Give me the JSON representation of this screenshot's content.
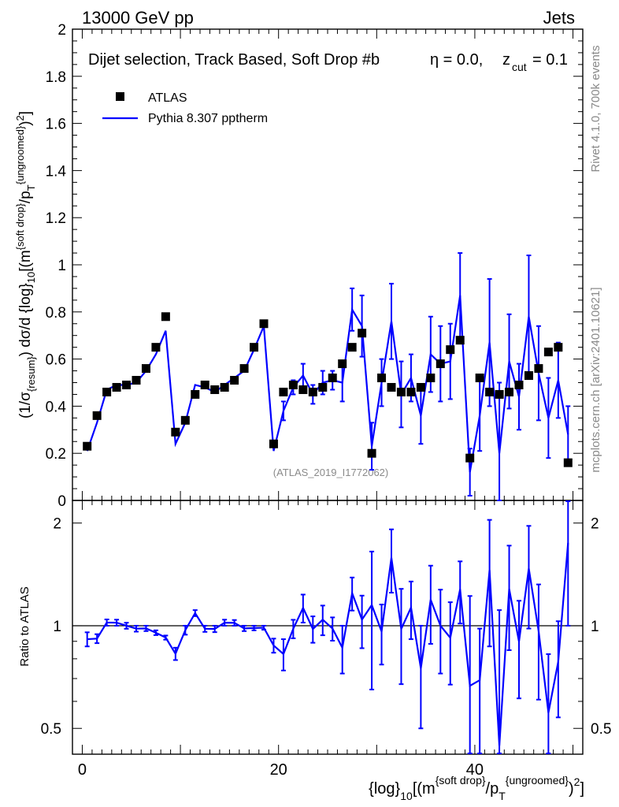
{
  "header": {
    "collision": "13000 GeV pp",
    "process": "Jets",
    "rivet_version": "Rivet 4.1.0,  700k events",
    "website": "mcplots.cern.ch [arXiv:2401.10621]",
    "analysis_id": "(ATLAS_2019_I1772062)"
  },
  "chart_data": {
    "type": "scatter",
    "title": "Dijet selection, Track Based, Soft Drop #b",
    "subtitle_eta": "η = 0.0,",
    "subtitle_z": "z",
    "subtitle_z_sub": "cut",
    "subtitle_z_val": "= 0.1",
    "ylabel_main": "(1/σ_{resum}) dσ/d {log}_{10}[(m^{soft drop}/p_T^{ungroomed})^2]",
    "ylabel_ratio": "Ratio to ATLAS",
    "xlabel": "{log}_{10}[(m^{soft drop}/p_T^{ungroomed})^2]",
    "xlim": [
      -1,
      51
    ],
    "ylim_main": [
      0,
      2
    ],
    "ylim_ratio": [
      0.42,
      2.33
    ],
    "x_ticks": [
      "0",
      "20",
      "40"
    ],
    "y_ticks_main": [
      "0",
      "0.2",
      "0.4",
      "0.6",
      "0.8",
      "1",
      "1.2",
      "1.4",
      "1.6",
      "1.8",
      "2"
    ],
    "y_ticks_ratio": [
      "0.5",
      "1",
      "2"
    ],
    "legend": [
      {
        "name": "ATLAS",
        "color": "#000000",
        "marker": "square"
      },
      {
        "name": "Pythia 8.307 pptherm",
        "color": "#0000ff",
        "marker": "line"
      }
    ],
    "x": [
      0.5,
      1.5,
      2.5,
      3.5,
      4.5,
      5.5,
      6.5,
      7.5,
      8.5,
      9.5,
      10.5,
      11.5,
      12.5,
      13.5,
      14.5,
      15.5,
      16.5,
      17.5,
      18.5,
      19.5,
      20.5,
      21.5,
      22.5,
      23.5,
      24.5,
      25.5,
      26.5,
      27.5,
      28.5,
      29.5,
      30.5,
      31.5,
      32.5,
      33.5,
      34.5,
      35.5,
      36.5,
      37.5,
      38.5,
      39.5,
      40.5,
      41.5,
      42.5,
      43.5,
      44.5,
      45.5,
      46.5,
      47.5,
      48.5,
      49.5
    ],
    "series": [
      {
        "name": "ATLAS",
        "values": [
          0.23,
          0.36,
          0.46,
          0.48,
          0.49,
          0.51,
          0.56,
          0.65,
          0.78,
          0.29,
          0.34,
          0.45,
          0.49,
          0.47,
          0.48,
          0.51,
          0.56,
          0.65,
          0.75,
          0.24,
          0.46,
          0.49,
          0.47,
          0.46,
          0.48,
          0.52,
          0.58,
          0.65,
          0.71,
          0.2,
          0.52,
          0.48,
          0.46,
          0.46,
          0.48,
          0.52,
          0.58,
          0.64,
          0.68,
          0.18,
          0.52,
          0.46,
          0.45,
          0.46,
          0.49,
          0.53,
          0.56,
          0.63,
          0.65,
          0.16
        ]
      },
      {
        "name": "Pythia 8.307 pptherm",
        "values": [
          0.21,
          0.33,
          0.47,
          0.49,
          0.49,
          0.5,
          0.55,
          0.62,
          0.72,
          0.24,
          0.33,
          0.49,
          0.48,
          0.46,
          0.49,
          0.52,
          0.55,
          0.64,
          0.74,
          0.21,
          0.38,
          0.48,
          0.53,
          0.45,
          0.5,
          0.51,
          0.5,
          0.81,
          0.74,
          0.23,
          0.5,
          0.76,
          0.45,
          0.52,
          0.36,
          0.62,
          0.58,
          0.59,
          0.87,
          0.12,
          0.36,
          0.67,
          0.2,
          0.59,
          0.44,
          0.78,
          0.54,
          0.35,
          0.51,
          0.28
        ],
        "errors": [
          0.01,
          0.01,
          0.01,
          0.01,
          0.01,
          0.01,
          0.01,
          0.01,
          0.01,
          0.01,
          0.01,
          0.01,
          0.01,
          0.01,
          0.01,
          0.01,
          0.01,
          0.01,
          0.01,
          0.01,
          0.04,
          0.03,
          0.05,
          0.04,
          0.05,
          0.04,
          0.08,
          0.09,
          0.13,
          0.1,
          0.1,
          0.16,
          0.14,
          0.1,
          0.12,
          0.16,
          0.16,
          0.16,
          0.18,
          0.1,
          0.15,
          0.27,
          0.3,
          0.2,
          0.14,
          0.26,
          0.2,
          0.17,
          0.16,
          0.12
        ]
      }
    ]
  }
}
